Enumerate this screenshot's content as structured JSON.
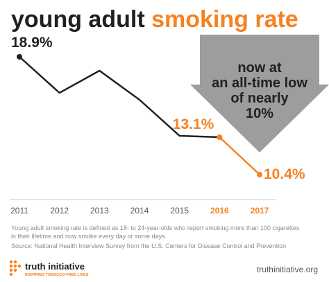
{
  "header": {
    "title_part1": "young adult ",
    "title_part2": "smoking rate"
  },
  "callout": {
    "lines": [
      "now at",
      "an all-time low",
      "of nearly",
      "10%"
    ]
  },
  "chart_data": {
    "type": "line",
    "x": [
      2011,
      2012,
      2013,
      2014,
      2015,
      2016,
      2017
    ],
    "x_tick_labels": [
      "2011",
      "2012",
      "2013",
      "2014",
      "2015",
      "2016",
      "2017"
    ],
    "highlight_years": [
      "2016",
      "2017"
    ],
    "series": [
      {
        "values": [
          18.9,
          16.3,
          17.9,
          15.8,
          13.2,
          13.1,
          10.4
        ]
      }
    ],
    "point_labels": [
      {
        "index": 0,
        "text": "18.9%",
        "color": "#231f20"
      },
      {
        "index": 5,
        "text": "13.1%",
        "color": "#f58220"
      },
      {
        "index": 6,
        "text": "10.4%",
        "color": "#f58220"
      }
    ],
    "ylim": [
      9,
      20
    ],
    "grid": false,
    "colors": {
      "historic_line": "#231f20",
      "recent_line": "#f58220",
      "arrow": "#9c9d9f",
      "axis": "#c8c8c8",
      "tick_label": "#555555",
      "tick_label_highlight": "#f58220"
    }
  },
  "footnote": {
    "definition": "Young adult smoking rate is defined as 18- to 24-year-olds who report smoking more than 100 cigarettes in their lifetime and now smoke every day or some days.",
    "source": "Source: National Health Interview Survey from the U.S. Centers for Disease Control and Prevention"
  },
  "brand": {
    "name": "truth initiative",
    "tagline": "INSPIRING TOBACCO-FREE LIVES",
    "url": "truthinitiative.org",
    "color": "#f58220"
  }
}
